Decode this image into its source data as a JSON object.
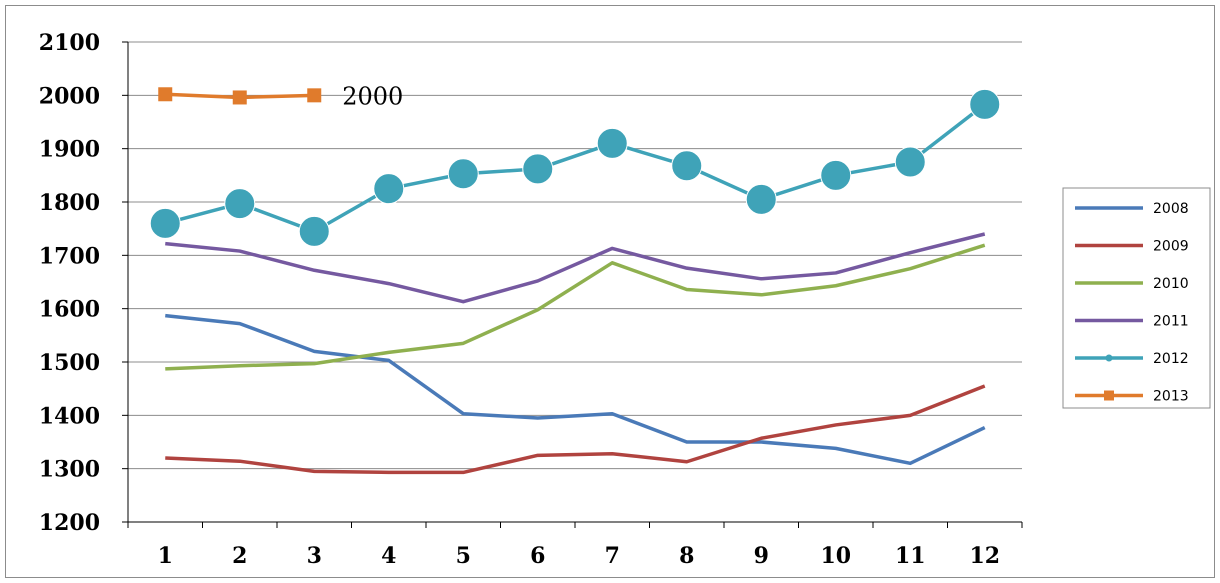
{
  "chart_data": {
    "type": "line",
    "title": "",
    "xlabel": "",
    "ylabel": "",
    "categories": [
      "1",
      "2",
      "3",
      "4",
      "5",
      "6",
      "7",
      "8",
      "9",
      "10",
      "11",
      "12"
    ],
    "ylim": [
      1200,
      2100
    ],
    "yticks": [
      "1200",
      "1300",
      "1400",
      "1500",
      "1600",
      "1700",
      "1800",
      "1900",
      "2000",
      "2100"
    ],
    "grid": "horizontal",
    "legend_position": "right",
    "series": [
      {
        "name": "2008",
        "color": "#4a7ab8",
        "marker": "none",
        "values": [
          1587,
          1572,
          1520,
          1503,
          1403,
          1395,
          1403,
          1350,
          1350,
          1338,
          1310,
          1377
        ]
      },
      {
        "name": "2009",
        "color": "#b0433f",
        "marker": "none",
        "values": [
          1320,
          1314,
          1295,
          1293,
          1293,
          1325,
          1328,
          1313,
          1357,
          1382,
          1400,
          1455
        ]
      },
      {
        "name": "2010",
        "color": "#8fb04f",
        "marker": "none",
        "values": [
          1487,
          1493,
          1497,
          1518,
          1535,
          1598,
          1686,
          1636,
          1626,
          1643,
          1675,
          1719
        ]
      },
      {
        "name": "2011",
        "color": "#7559a0",
        "marker": "none",
        "values": [
          1722,
          1708,
          1672,
          1647,
          1613,
          1652,
          1713,
          1676,
          1656,
          1667,
          1705,
          1740
        ]
      },
      {
        "name": "2012",
        "color": "#3fa3b8",
        "marker": "circle",
        "values": [
          1760,
          1797,
          1745,
          1825,
          1853,
          1862,
          1910,
          1868,
          1805,
          1850,
          1875,
          1983
        ]
      },
      {
        "name": "2013",
        "color": "#e07b2c",
        "marker": "square",
        "values": [
          2002,
          1996,
          2000,
          null,
          null,
          null,
          null,
          null,
          null,
          null,
          null,
          null
        ]
      }
    ],
    "annotations": [
      {
        "text": "2000",
        "series": "2013",
        "x": "3"
      }
    ]
  }
}
